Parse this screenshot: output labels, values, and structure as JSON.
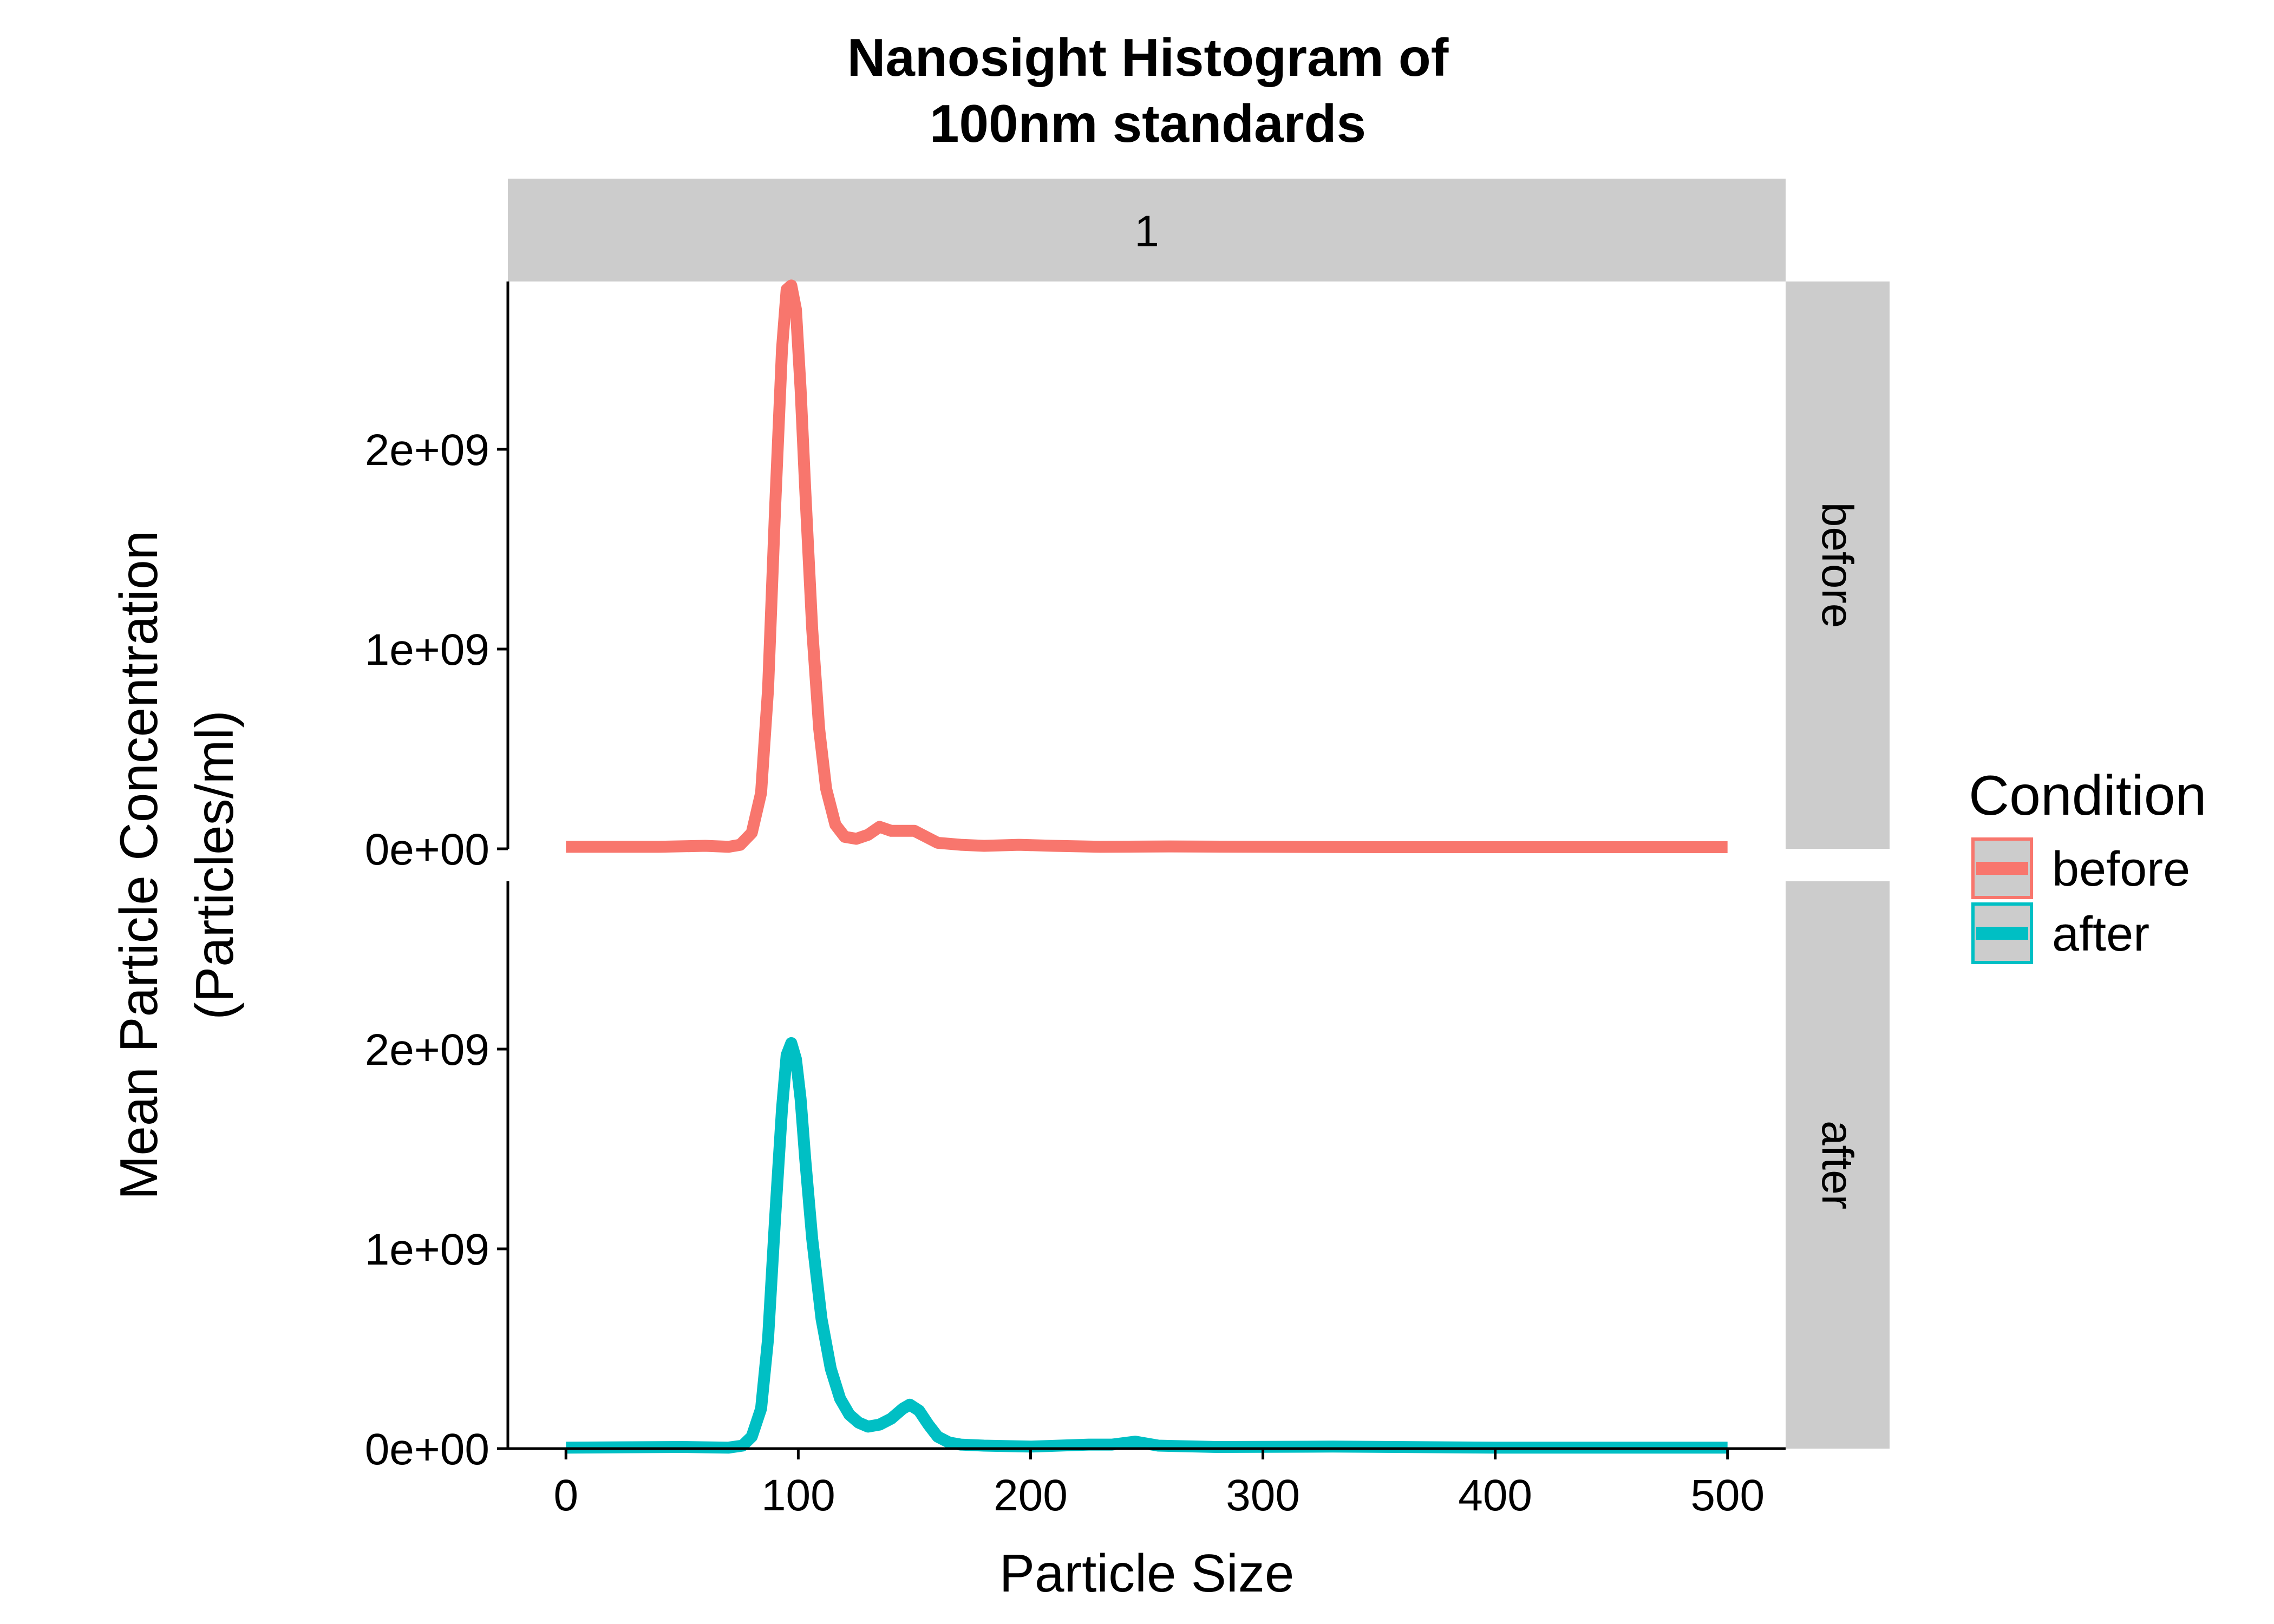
{
  "chart_data": {
    "type": "line",
    "title_lines": [
      "Nanosight Histogram of",
      "100nm standards"
    ],
    "xlabel": "Particle Size",
    "ylabel_lines": [
      "Mean Particle Concentration",
      "(Particles/ml)"
    ],
    "xlim": [
      -25,
      525
    ],
    "ylim": [
      0,
      2840000000
    ],
    "x_ticks": [
      0,
      100,
      200,
      300,
      400,
      500
    ],
    "x_tick_labels": [
      "0",
      "100",
      "200",
      "300",
      "400",
      "500"
    ],
    "y_ticks": [
      0,
      1000000000,
      2000000000
    ],
    "y_tick_labels": [
      "0e+00",
      "1e+09",
      "2e+09"
    ],
    "facet_column_label": "1",
    "grid": false,
    "legend": {
      "title": "Condition",
      "position": "right",
      "entries": [
        "before",
        "after"
      ]
    },
    "series": [
      {
        "name": "before",
        "facet_label": "before",
        "color": "#F8766D",
        "x": [
          0,
          40,
          60,
          70,
          75,
          80,
          84,
          87,
          90,
          93,
          95,
          97,
          99,
          101,
          103,
          106,
          109,
          112,
          116,
          120,
          125,
          130,
          135,
          140,
          145,
          150,
          155,
          160,
          170,
          180,
          195,
          210,
          230,
          260,
          300,
          350,
          400,
          450,
          500
        ],
        "y": [
          10000000,
          10000000,
          15000000,
          10000000,
          20000000,
          80000000,
          280000000,
          800000000,
          1700000000,
          2500000000,
          2800000000,
          2820000000,
          2700000000,
          2300000000,
          1800000000,
          1100000000,
          600000000,
          300000000,
          120000000,
          60000000,
          50000000,
          70000000,
          110000000,
          90000000,
          90000000,
          90000000,
          60000000,
          30000000,
          20000000,
          15000000,
          20000000,
          15000000,
          10000000,
          12000000,
          10000000,
          8000000,
          8000000,
          8000000,
          8000000
        ]
      },
      {
        "name": "after",
        "facet_label": "after",
        "color": "#00BFC4",
        "x": [
          0,
          50,
          70,
          76,
          80,
          84,
          87,
          90,
          93,
          95,
          97,
          99,
          101,
          103,
          106,
          110,
          114,
          118,
          122,
          126,
          130,
          135,
          140,
          145,
          148,
          152,
          156,
          160,
          165,
          170,
          180,
          200,
          225,
          235,
          245,
          255,
          280,
          330,
          400,
          450,
          500
        ],
        "y": [
          5000000,
          8000000,
          5000000,
          15000000,
          60000000,
          200000000,
          550000000,
          1150000000,
          1700000000,
          1970000000,
          2030000000,
          1950000000,
          1750000000,
          1450000000,
          1050000000,
          650000000,
          400000000,
          250000000,
          170000000,
          130000000,
          110000000,
          120000000,
          150000000,
          200000000,
          220000000,
          190000000,
          120000000,
          60000000,
          30000000,
          20000000,
          15000000,
          10000000,
          20000000,
          20000000,
          35000000,
          15000000,
          8000000,
          10000000,
          5000000,
          5000000,
          5000000
        ]
      }
    ]
  }
}
